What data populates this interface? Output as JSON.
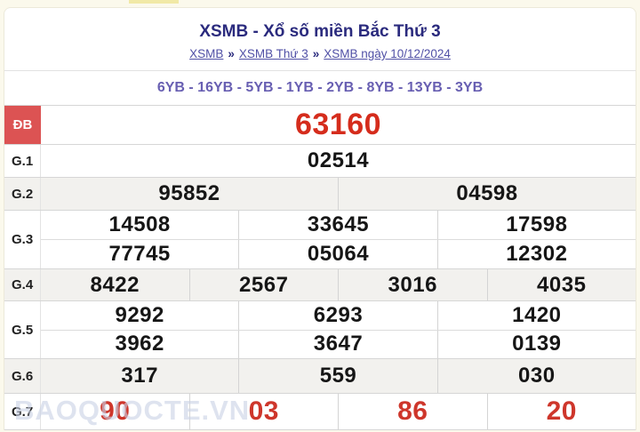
{
  "page": {
    "title": "XSMB - Xổ số miền Bắc Thứ 3",
    "breadcrumb_separator": "»",
    "breadcrumb": [
      {
        "label": "XSMB"
      },
      {
        "label": "XSMB Thứ 3"
      },
      {
        "label": "XSMB ngày 10/12/2024"
      }
    ],
    "loto_line": "6YB - 16YB - 5YB - 1YB - 2YB - 8YB - 13YB - 3YB",
    "watermark": "BAOQUOCTE.VN"
  },
  "results": {
    "rows": [
      {
        "label": "ĐB",
        "style": "special",
        "groups": [
          [
            "63160"
          ]
        ]
      },
      {
        "label": "G.1",
        "groups": [
          [
            "02514"
          ]
        ]
      },
      {
        "label": "G.2",
        "groups": [
          [
            "95852",
            "04598"
          ]
        ]
      },
      {
        "label": "G.3",
        "groups": [
          [
            "14508",
            "33645",
            "17598"
          ],
          [
            "77745",
            "05064",
            "12302"
          ]
        ]
      },
      {
        "label": "G.4",
        "groups": [
          [
            "8422",
            "2567",
            "3016",
            "4035"
          ]
        ]
      },
      {
        "label": "G.5",
        "groups": [
          [
            "9292",
            "6293",
            "1420"
          ],
          [
            "3962",
            "3647",
            "0139"
          ]
        ]
      },
      {
        "label": "G.6",
        "groups": [
          [
            "317",
            "559",
            "030"
          ]
        ]
      },
      {
        "label": "G.7",
        "style": "red",
        "groups": [
          [
            "90",
            "03",
            "86",
            "20"
          ]
        ]
      }
    ]
  },
  "colors": {
    "special_label_bg": "#dc5353",
    "special_value": "#d52c1c",
    "g7_value": "#ce362b",
    "title": "#2b2b7e",
    "link": "#5050a6",
    "loto_line": "#685fb2",
    "alt_row_bg": "#f2f1ee"
  }
}
